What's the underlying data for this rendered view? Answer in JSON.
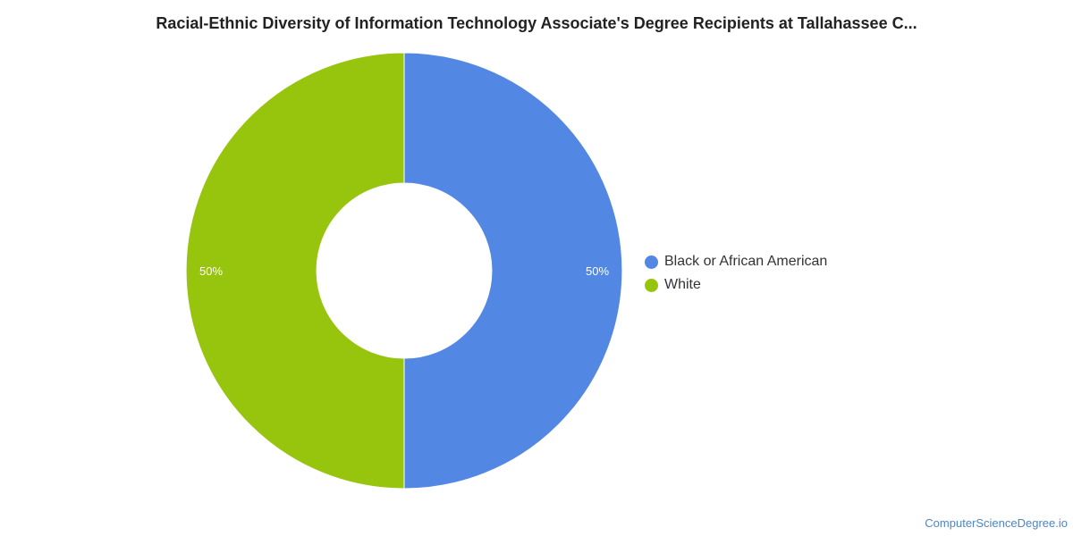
{
  "chart_data": {
    "type": "pie",
    "donut": true,
    "title": "Racial-Ethnic Diversity of Information Technology Associate's Degree Recipients at Tallahassee C...",
    "slices": [
      {
        "label": "Black or African American",
        "value": 50,
        "value_label": "50%",
        "color": "#5387e4"
      },
      {
        "label": "White",
        "value": 50,
        "value_label": "50%",
        "color": "#97c40d"
      }
    ],
    "legend_position": "right"
  },
  "watermark": "ComputerScienceDegree.io"
}
